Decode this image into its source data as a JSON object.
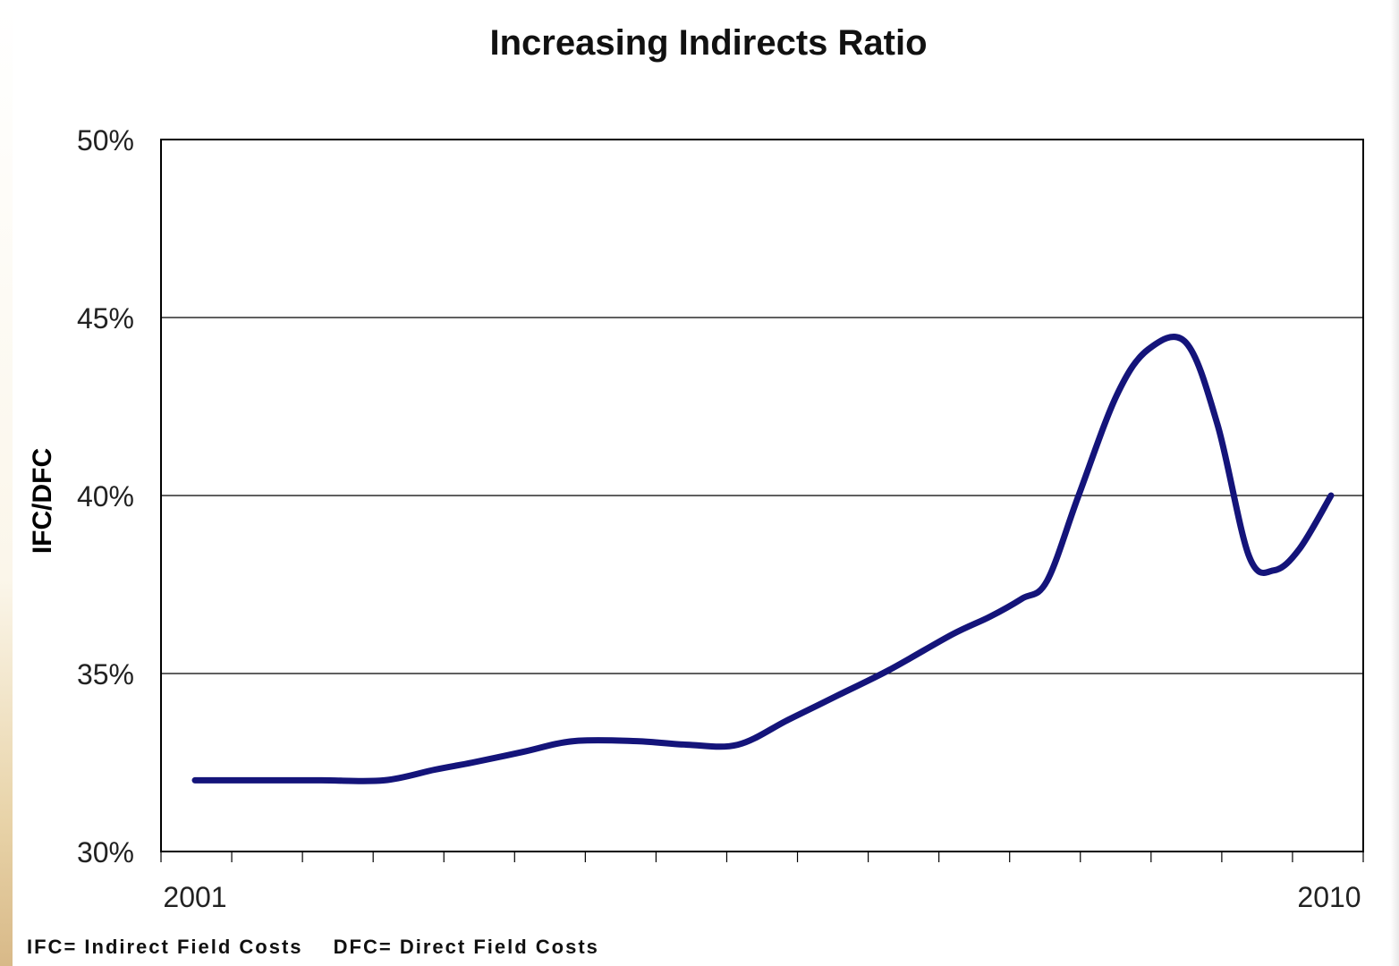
{
  "chart_data": {
    "type": "line",
    "title": "Increasing Indirects Ratio",
    "xlabel": "",
    "ylabel": "IFC/DFC",
    "x_tick_labels": [
      "2001",
      "2010"
    ],
    "y_tick_labels": [
      "50%",
      "45%",
      "40%",
      "35%",
      "30%"
    ],
    "ylim": [
      30,
      50
    ],
    "yticks": [
      30,
      35,
      40,
      45,
      50
    ],
    "grid": "horizontal",
    "legend": "none",
    "series": [
      {
        "color": "#14147a",
        "x": [
          2001.0,
          2001.5,
          2002.0,
          2002.5,
          2002.9,
          2003.2,
          2003.6,
          2004.0,
          2004.5,
          2004.9,
          2005.3,
          2005.7,
          2006.1,
          2006.5,
          2007.0,
          2007.3,
          2007.55,
          2007.75,
          2008.0,
          2008.3,
          2008.55,
          2008.85,
          2009.1,
          2009.35,
          2009.55,
          2009.75,
          2010.0
        ],
        "values": [
          32.0,
          32.0,
          32.0,
          32.0,
          32.3,
          32.5,
          32.8,
          33.1,
          33.1,
          33.0,
          33.0,
          33.7,
          34.4,
          35.1,
          36.1,
          36.6,
          37.1,
          37.6,
          40.0,
          42.8,
          44.1,
          44.3,
          42.0,
          38.3,
          37.9,
          38.5,
          40.0
        ]
      }
    ]
  },
  "footnote": {
    "ifc": "IFC= Indirect Field Costs",
    "dfc": "DFC= Direct Field Costs"
  }
}
